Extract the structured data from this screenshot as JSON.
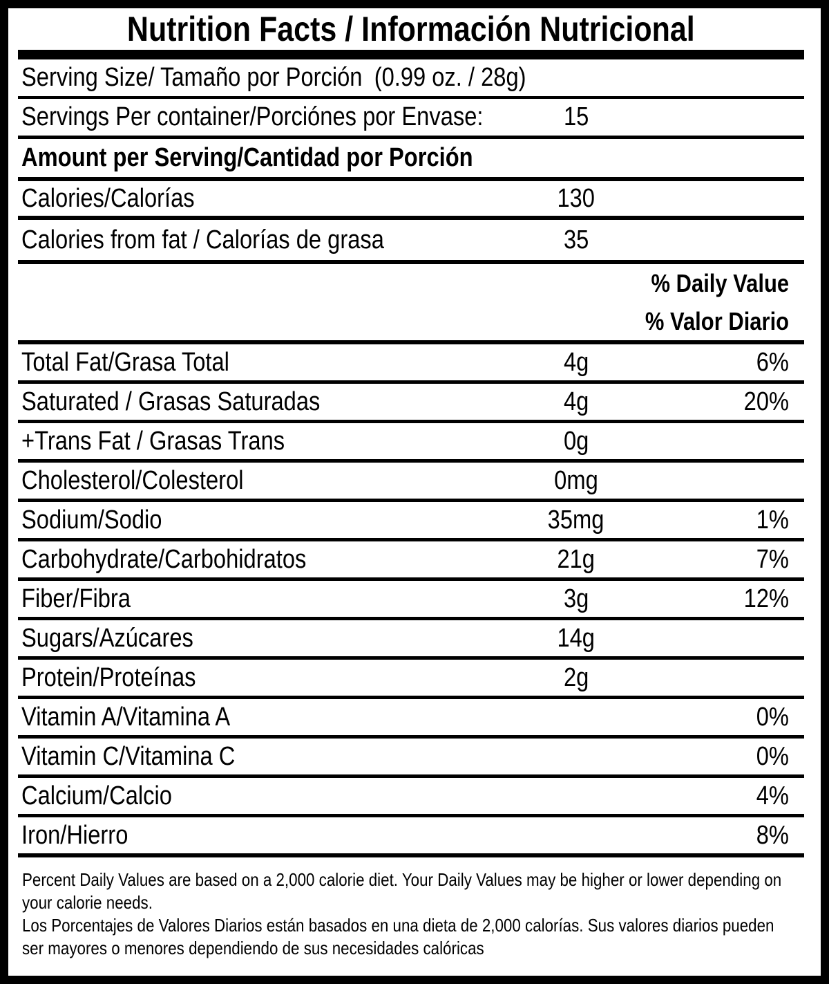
{
  "label": {
    "title": "Nutrition Facts / Información Nutricional",
    "serving_size": {
      "label": "Serving Size/ Tamaño por Porción",
      "value": "(0.99 oz. / 28g)"
    },
    "servings_per_container": {
      "label": "Servings Per container/Porciónes por Envase:",
      "value": "15"
    },
    "amount_per_serving_header": "Amount per Serving/Cantidad por Porción",
    "calories": {
      "label": "Calories/Calorías",
      "value": "130"
    },
    "calories_from_fat": {
      "label": "Calories from fat / Calorías de grasa",
      "value": "35"
    },
    "daily_value_header": {
      "line1": "% Daily Value",
      "line2": "% Valor Diario"
    },
    "nutrients": [
      {
        "label": "Total Fat/Grasa Total",
        "amount": "4g",
        "dv": "6%"
      },
      {
        "label": "Saturated / Grasas Saturadas",
        "amount": "4g",
        "dv": "20%"
      },
      {
        "label": "+Trans Fat / Grasas Trans",
        "amount": "0g",
        "dv": ""
      },
      {
        "label": "Cholesterol/Colesterol",
        "amount": "0mg",
        "dv": ""
      },
      {
        "label": "Sodium/Sodio",
        "amount": "35mg",
        "dv": "1%"
      },
      {
        "label": "Carbohydrate/Carbohidratos",
        "amount": "21g",
        "dv": "7%"
      },
      {
        "label": "Fiber/Fibra",
        "amount": "3g",
        "dv": "12%"
      },
      {
        "label": "Sugars/Azúcares",
        "amount": "14g",
        "dv": ""
      },
      {
        "label": "Protein/Proteínas",
        "amount": "2g",
        "dv": ""
      },
      {
        "label": "Vitamin A/Vitamina A",
        "amount": "",
        "dv": "0%"
      },
      {
        "label": "Vitamin C/Vitamina C",
        "amount": "",
        "dv": "0%"
      },
      {
        "label": "Calcium/Calcio",
        "amount": "",
        "dv": "4%"
      },
      {
        "label": "Iron/Hierro",
        "amount": "",
        "dv": "8%"
      }
    ],
    "footnotes": [
      "Percent Daily Values are based on a 2,000 calorie diet. Your Daily Values may be higher or lower depending on your calorie needs.",
      "Los Porcentajes de Valores Diarios están basados en una dieta de 2,000 calorías. Sus valores diarios pueden ser mayores o menores dependiendo de sus necesidades calóricas"
    ],
    "colors": {
      "text": "#000000",
      "background": "#ffffff"
    }
  }
}
